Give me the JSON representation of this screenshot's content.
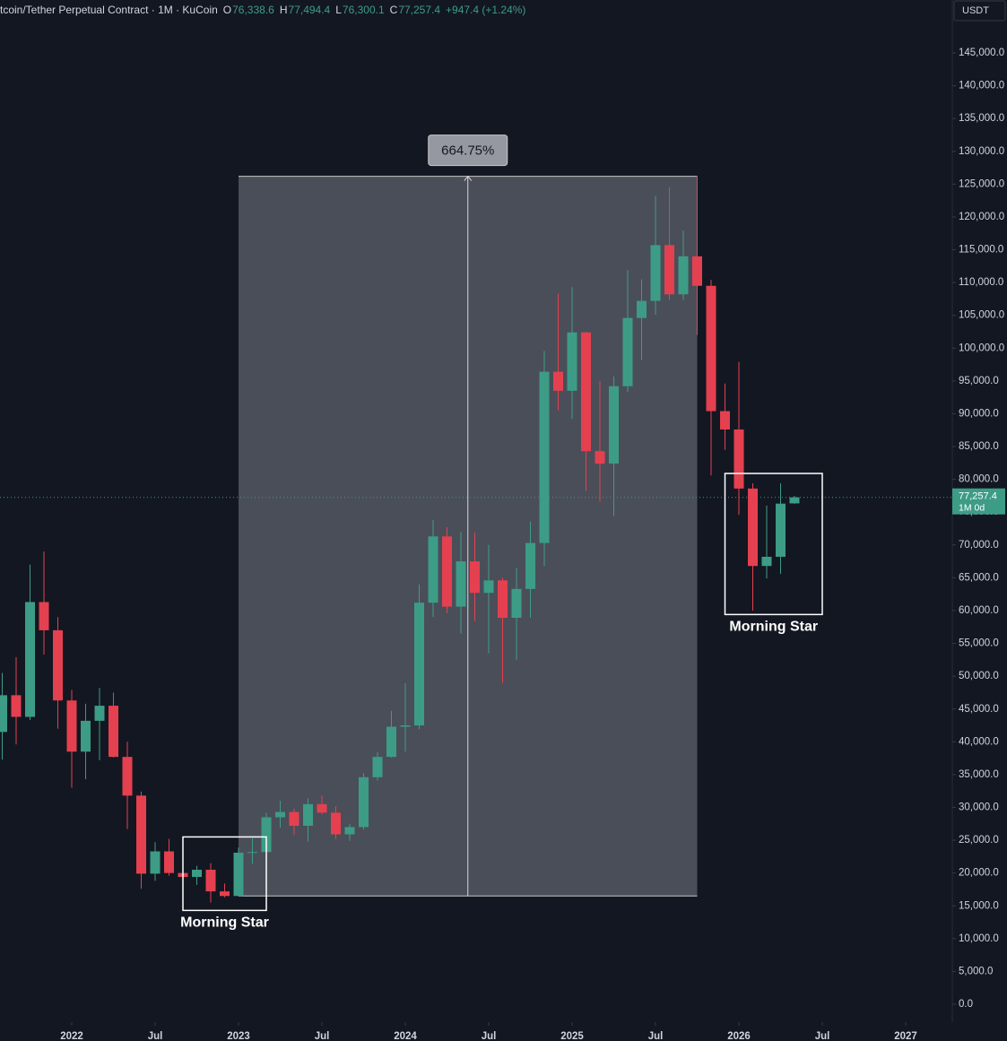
{
  "chart_data": {
    "type": "candlestick",
    "header": {
      "symbol": "tcoin/Tether Perpetual Contract · 1M · KuCoin",
      "open_label": "O",
      "open": "76,338.6",
      "high_label": "H",
      "high": "77,494.4",
      "low_label": "L",
      "low": "76,300.1",
      "close_label": "C",
      "close": "77,257.4",
      "change": "+947.4 (+1.24%)"
    },
    "currency": "USDT",
    "up_color": "#3d9c86",
    "down_color": "#e5404f",
    "x": [
      "2021-08",
      "2021-09",
      "2021-10",
      "2021-11",
      "2021-12",
      "2022-01",
      "2022-02",
      "2022-03",
      "2022-04",
      "2022-05",
      "2022-06",
      "2022-07",
      "2022-08",
      "2022-09",
      "2022-10",
      "2022-11",
      "2022-12",
      "2023-01",
      "2023-02",
      "2023-03",
      "2023-04",
      "2023-05",
      "2023-06",
      "2023-07",
      "2023-08",
      "2023-09",
      "2023-10",
      "2023-11",
      "2023-12",
      "2024-01",
      "2024-02",
      "2024-03",
      "2024-04",
      "2024-05",
      "2024-06",
      "2024-07",
      "2024-08",
      "2024-09",
      "2024-10",
      "2024-11",
      "2024-12",
      "2025-01",
      "2025-02",
      "2025-03",
      "2025-04",
      "2025-05",
      "2025-06",
      "2025-07",
      "2025-08",
      "2025-09",
      "2025-10",
      "2025-11",
      "2025-12",
      "2026-01",
      "2026-02",
      "2026-03",
      "2026-04",
      "2026-05"
    ],
    "open": [
      41500,
      47100,
      43800,
      61300,
      57000,
      46300,
      38500,
      43200,
      45500,
      37700,
      31800,
      19900,
      23300,
      20000,
      19400,
      20500,
      17200,
      16500,
      23100,
      23200,
      28500,
      29300,
      27200,
      30500,
      29200,
      25900,
      27000,
      34600,
      37700,
      42300,
      42500,
      61200,
      71300,
      60600,
      67500,
      62700,
      64600,
      58900,
      63300,
      70300,
      96400,
      93500,
      102400,
      84300,
      82400,
      94200,
      104600,
      107200,
      115700,
      108200,
      114000,
      109500,
      90400,
      87600,
      78600,
      66800,
      68200,
      76338.6
    ],
    "high": [
      50500,
      52900,
      67000,
      69000,
      59000,
      47900,
      45800,
      48200,
      47500,
      40000,
      32400,
      24700,
      25200,
      22800,
      21100,
      21500,
      18400,
      23900,
      25300,
      29200,
      31000,
      29800,
      31400,
      31800,
      30200,
      27500,
      35200,
      38400,
      44700,
      48900,
      64000,
      73800,
      72700,
      72000,
      71900,
      70000,
      65000,
      66500,
      73600,
      99600,
      108300,
      109300,
      102500,
      95000,
      95700,
      111900,
      110500,
      123200,
      124500,
      117900,
      126200,
      110400,
      94600,
      97900,
      79400,
      76000,
      79400,
      77494.4
    ],
    "low": [
      37300,
      39600,
      43300,
      53300,
      42000,
      33000,
      34300,
      37200,
      37600,
      26700,
      17600,
      18800,
      19600,
      18100,
      18200,
      15500,
      16300,
      16500,
      21400,
      19600,
      26900,
      25800,
      24800,
      28900,
      25200,
      24900,
      26600,
      34100,
      37600,
      38500,
      41900,
      59000,
      59600,
      56500,
      58400,
      53500,
      49000,
      52500,
      58900,
      66800,
      90500,
      89200,
      78200,
      76600,
      74400,
      93300,
      98200,
      105100,
      107300,
      107300,
      102000,
      80600,
      84500,
      74600,
      60000,
      64900,
      65600,
      76300.1
    ],
    "close": [
      47100,
      43800,
      61300,
      57000,
      46300,
      38500,
      43200,
      45500,
      37700,
      31800,
      19900,
      23300,
      20000,
      19400,
      20500,
      17200,
      16500,
      23100,
      23200,
      28500,
      29300,
      27200,
      30500,
      29200,
      25900,
      27000,
      34600,
      37700,
      42300,
      42500,
      61200,
      71300,
      60600,
      67500,
      62700,
      64600,
      58900,
      63300,
      70300,
      96400,
      93500,
      102400,
      84300,
      82400,
      94200,
      104600,
      107200,
      115700,
      108200,
      114000,
      109500,
      90400,
      87600,
      78600,
      66800,
      68200,
      76300,
      77257.4
    ],
    "xlim": [
      "2021-08",
      "2027-02"
    ],
    "xticks": [
      {
        "value": "2022-01",
        "label": "2022"
      },
      {
        "value": "2022-07",
        "label": "Jul"
      },
      {
        "value": "2023-01",
        "label": "2023"
      },
      {
        "value": "2023-07",
        "label": "Jul"
      },
      {
        "value": "2024-01",
        "label": "2024"
      },
      {
        "value": "2024-07",
        "label": "Jul"
      },
      {
        "value": "2025-01",
        "label": "2025"
      },
      {
        "value": "2025-07",
        "label": "Jul"
      },
      {
        "value": "2026-01",
        "label": "2026"
      },
      {
        "value": "2026-07",
        "label": "Jul"
      },
      {
        "value": "2027-01",
        "label": "2027"
      }
    ],
    "ylim": [
      0,
      145000
    ],
    "yticks": [
      {
        "value": 0,
        "label": "0.0"
      },
      {
        "value": 5000,
        "label": "5,000.0"
      },
      {
        "value": 10000,
        "label": "10,000.0"
      },
      {
        "value": 15000,
        "label": "15,000.0"
      },
      {
        "value": 20000,
        "label": "20,000.0"
      },
      {
        "value": 25000,
        "label": "25,000.0"
      },
      {
        "value": 30000,
        "label": "30,000.0"
      },
      {
        "value": 35000,
        "label": "35,000.0"
      },
      {
        "value": 40000,
        "label": "40,000.0"
      },
      {
        "value": 45000,
        "label": "45,000.0"
      },
      {
        "value": 50000,
        "label": "50,000.0"
      },
      {
        "value": 55000,
        "label": "55,000.0"
      },
      {
        "value": 60000,
        "label": "60,000.0"
      },
      {
        "value": 65000,
        "label": "65,000.0"
      },
      {
        "value": 70000,
        "label": "70,000.0"
      },
      {
        "value": 75000,
        "label": "75,000.0"
      },
      {
        "value": 80000,
        "label": "80,000.0"
      },
      {
        "value": 85000,
        "label": "85,000.0"
      },
      {
        "value": 90000,
        "label": "90,000.0"
      },
      {
        "value": 95000,
        "label": "95,000.0"
      },
      {
        "value": 100000,
        "label": "100,000.0"
      },
      {
        "value": 105000,
        "label": "105,000.0"
      },
      {
        "value": 110000,
        "label": "110,000.0"
      },
      {
        "value": 115000,
        "label": "115,000.0"
      },
      {
        "value": 120000,
        "label": "120,000.0"
      },
      {
        "value": 125000,
        "label": "125,000.0"
      },
      {
        "value": 130000,
        "label": "130,000.0"
      },
      {
        "value": 135000,
        "label": "135,000.0"
      },
      {
        "value": 140000,
        "label": "140,000.0"
      },
      {
        "value": 145000,
        "label": "145,000.0"
      }
    ],
    "last_price": {
      "value": 77257.4,
      "label": "77,257.4",
      "countdown": "1M 0d"
    },
    "measure": {
      "value": 664.75,
      "label": "664.75%",
      "x0": "2023-01",
      "x1": "2025-10",
      "low": 16500,
      "high": 126200
    },
    "patterns": [
      {
        "label": "Morning Star",
        "x0": "2022-09",
        "x1": "2023-03",
        "low": 14300,
        "high": 25500
      },
      {
        "label": "Morning Star",
        "x0": "2025-12",
        "x1": "2026-07",
        "low": 59400,
        "high": 80900
      }
    ]
  }
}
